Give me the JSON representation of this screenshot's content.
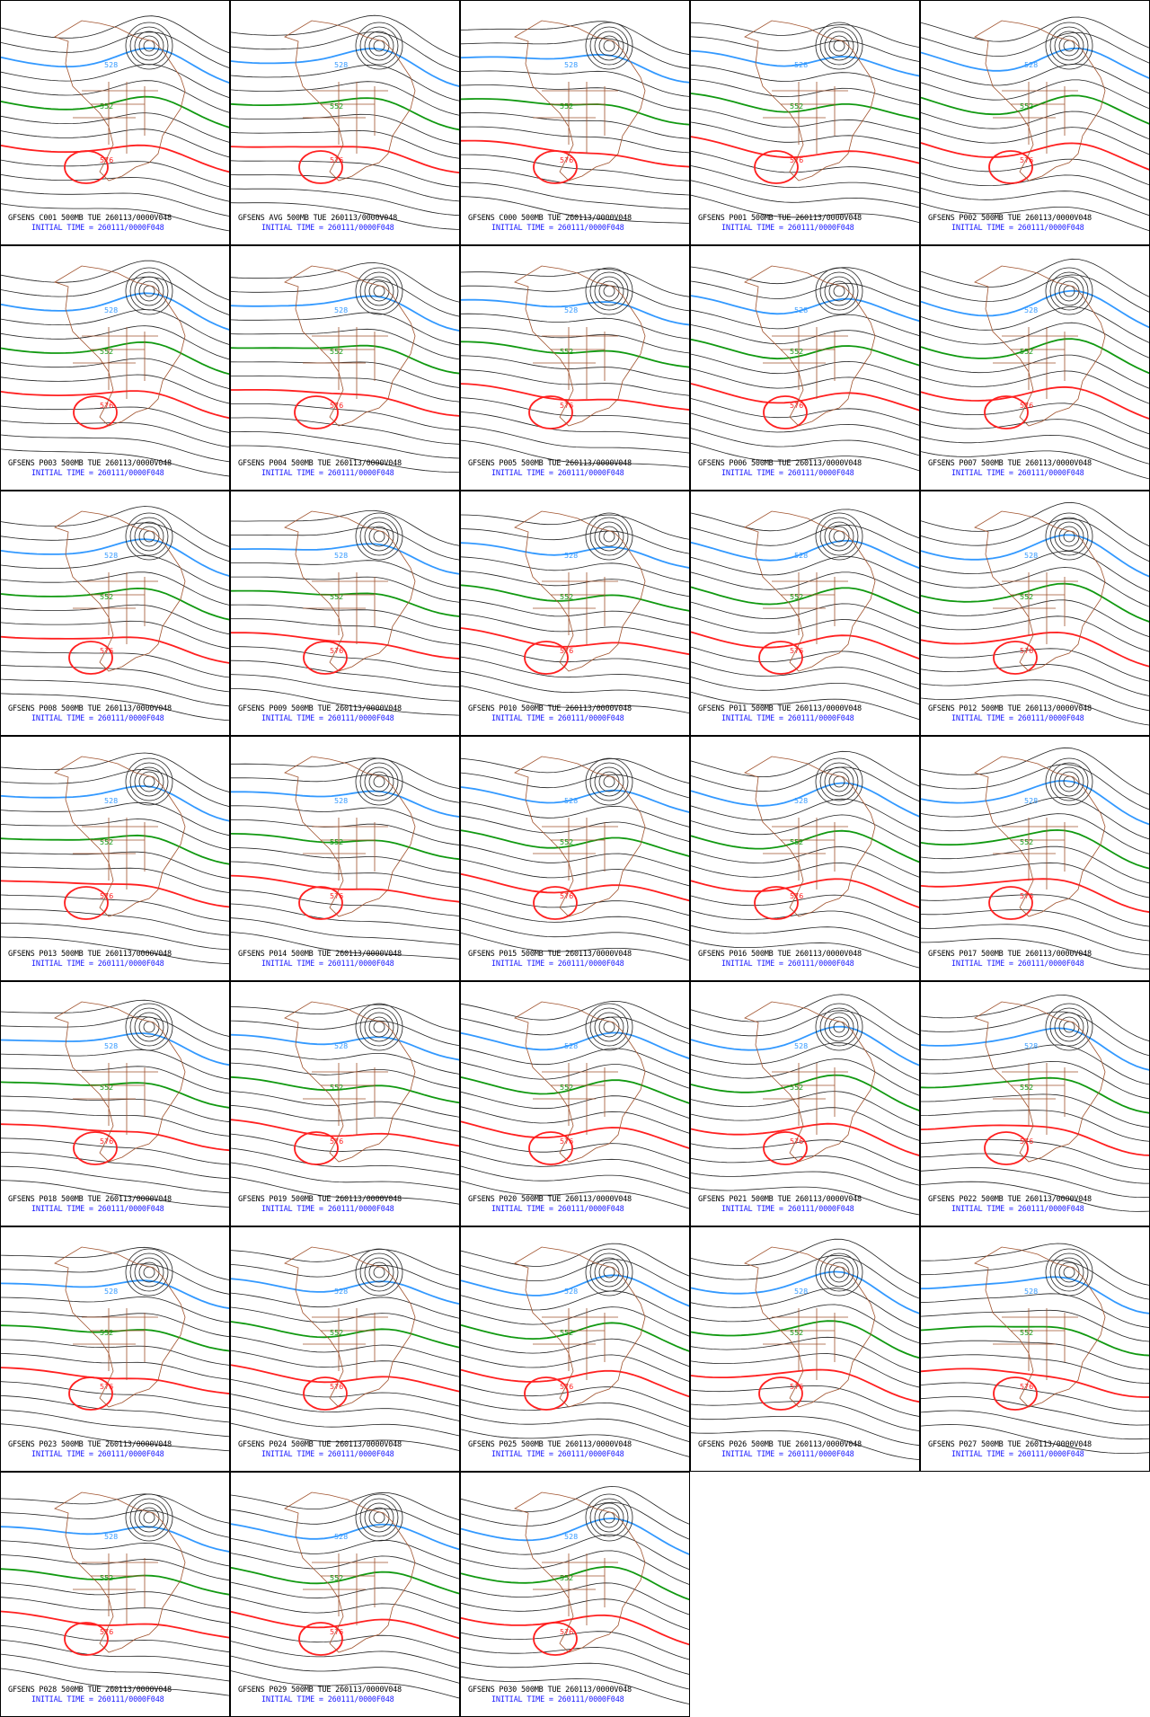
{
  "panels": [
    {
      "title": "GFSENS C001 500MB TUE 260113/0000V048",
      "init": "INITIAL TIME = 260111/0000F048",
      "contour_labels": [
        "528",
        "552",
        "576"
      ]
    },
    {
      "title": "GFSENS AVG 500MB TUE 260113/0000V048",
      "init": "INITIAL TIME = 260111/0000F048",
      "contour_labels": [
        "528",
        "552",
        "576"
      ]
    },
    {
      "title": "GFSENS C000 500MB TUE 260113/0000V048",
      "init": "INITIAL TIME = 260111/0000F048",
      "contour_labels": [
        "528",
        "552",
        "576"
      ]
    },
    {
      "title": "GFSENS P001 500MB TUE 260113/0000V048",
      "init": "INITIAL TIME = 260111/0000F048",
      "contour_labels": [
        "528",
        "552",
        "576"
      ]
    },
    {
      "title": "GFSENS P002 500MB TUE 260113/0000V048",
      "init": "INITIAL TIME = 260111/0000F048",
      "contour_labels": [
        "528",
        "552",
        "576"
      ]
    },
    {
      "title": "GFSENS P003 500MB TUE 260113/0000V048",
      "init": "INITIAL TIME = 260111/0000F048",
      "contour_labels": [
        "528",
        "552",
        "576"
      ]
    },
    {
      "title": "GFSENS P004 500MB TUE 260113/0000V048",
      "init": "INITIAL TIME = 260111/0000F048",
      "contour_labels": [
        "528",
        "552",
        "576"
      ]
    },
    {
      "title": "GFSENS P005 500MB TUE 260113/0000V048",
      "init": "INITIAL TIME = 260111/0000F048",
      "contour_labels": [
        "528",
        "552",
        "576"
      ]
    },
    {
      "title": "GFSENS P006 500MB TUE 260113/0000V048",
      "init": "INITIAL TIME = 260111/0000F048",
      "contour_labels": [
        "528",
        "552",
        "576"
      ]
    },
    {
      "title": "GFSENS P007 500MB TUE 260113/0000V048",
      "init": "INITIAL TIME = 260111/0000F048",
      "contour_labels": [
        "528",
        "552",
        "576"
      ]
    },
    {
      "title": "GFSENS P008 500MB TUE 260113/0000V048",
      "init": "INITIAL TIME = 260111/0000F048",
      "contour_labels": [
        "528",
        "552",
        "576"
      ]
    },
    {
      "title": "GFSENS P009 500MB TUE 260113/0000V048",
      "init": "INITIAL TIME = 260111/0000F048",
      "contour_labels": [
        "528",
        "552",
        "576"
      ]
    },
    {
      "title": "GFSENS P010 500MB TUE 260113/0000V048",
      "init": "INITIAL TIME = 260111/0000F048",
      "contour_labels": [
        "528",
        "552",
        "576"
      ]
    },
    {
      "title": "GFSENS P011 500MB TUE 260113/0000V048",
      "init": "INITIAL TIME = 260111/0000F048",
      "contour_labels": [
        "528",
        "552",
        "576"
      ]
    },
    {
      "title": "GFSENS P012 500MB TUE 260113/0000V048",
      "init": "INITIAL TIME = 260111/0000F048",
      "contour_labels": [
        "528",
        "552",
        "576"
      ]
    },
    {
      "title": "GFSENS P013 500MB TUE 260113/0000V048",
      "init": "INITIAL TIME = 260111/0000F048",
      "contour_labels": [
        "528",
        "552",
        "576"
      ]
    },
    {
      "title": "GFSENS P014 500MB TUE 260113/0000V048",
      "init": "INITIAL TIME = 260111/0000F048",
      "contour_labels": [
        "528",
        "552",
        "576"
      ]
    },
    {
      "title": "GFSENS P015 500MB TUE 260113/0000V048",
      "init": "INITIAL TIME = 260111/0000F048",
      "contour_labels": [
        "528",
        "552",
        "576"
      ]
    },
    {
      "title": "GFSENS P016 500MB TUE 260113/0000V048",
      "init": "INITIAL TIME = 260111/0000F048",
      "contour_labels": [
        "528",
        "552",
        "576"
      ]
    },
    {
      "title": "GFSENS P017 500MB TUE 260113/0000V048",
      "init": "INITIAL TIME = 260111/0000F048",
      "contour_labels": [
        "528",
        "552",
        "576"
      ]
    },
    {
      "title": "GFSENS P018 500MB TUE 260113/0000V048",
      "init": "INITIAL TIME = 260111/0000F048",
      "contour_labels": [
        "528",
        "552",
        "576"
      ]
    },
    {
      "title": "GFSENS P019 500MB TUE 260113/0000V048",
      "init": "INITIAL TIME = 260111/0000F048",
      "contour_labels": [
        "528",
        "552",
        "576"
      ]
    },
    {
      "title": "GFSENS P020 500MB TUE 260113/0000V048",
      "init": "INITIAL TIME = 260111/0000F048",
      "contour_labels": [
        "528",
        "552",
        "576"
      ]
    },
    {
      "title": "GFSENS P021 500MB TUE 260113/0000V048",
      "init": "INITIAL TIME = 260111/0000F048",
      "contour_labels": [
        "528",
        "552",
        "576"
      ]
    },
    {
      "title": "GFSENS P022 500MB TUE 260113/0000V048",
      "init": "INITIAL TIME = 260111/0000F048",
      "contour_labels": [
        "528",
        "552",
        "576"
      ]
    },
    {
      "title": "GFSENS P023 500MB TUE 260113/0000V048",
      "init": "INITIAL TIME = 260111/0000F048",
      "contour_labels": [
        "528",
        "552",
        "576"
      ]
    },
    {
      "title": "GFSENS P024 500MB TUE 260113/0000V048",
      "init": "INITIAL TIME = 260111/0000F048",
      "contour_labels": [
        "528",
        "552",
        "576"
      ]
    },
    {
      "title": "GFSENS P025 500MB TUE 260113/0000V048",
      "init": "INITIAL TIME = 260111/0000F048",
      "contour_labels": [
        "528",
        "552",
        "576"
      ]
    },
    {
      "title": "GFSENS P026 500MB TUE 260113/0000V048",
      "init": "INITIAL TIME = 260111/0000F048",
      "contour_labels": [
        "528",
        "552",
        "576"
      ]
    },
    {
      "title": "GFSENS P027 500MB TUE 260113/0000V048",
      "init": "INITIAL TIME = 260111/0000F048",
      "contour_labels": [
        "528",
        "552",
        "576"
      ]
    },
    {
      "title": "GFSENS P028 500MB TUE 260113/0000V048",
      "init": "INITIAL TIME = 260111/0000F048",
      "contour_labels": [
        "528",
        "552",
        "576"
      ]
    },
    {
      "title": "GFSENS P029 500MB TUE 260113/0000V048",
      "init": "INITIAL TIME = 260111/0000F048",
      "contour_labels": [
        "528",
        "552",
        "576"
      ]
    },
    {
      "title": "GFSENS P030 500MB TUE 260113/0000V048",
      "init": "INITIAL TIME = 260111/0000F048",
      "contour_labels": [
        "528",
        "552",
        "576"
      ]
    }
  ]
}
